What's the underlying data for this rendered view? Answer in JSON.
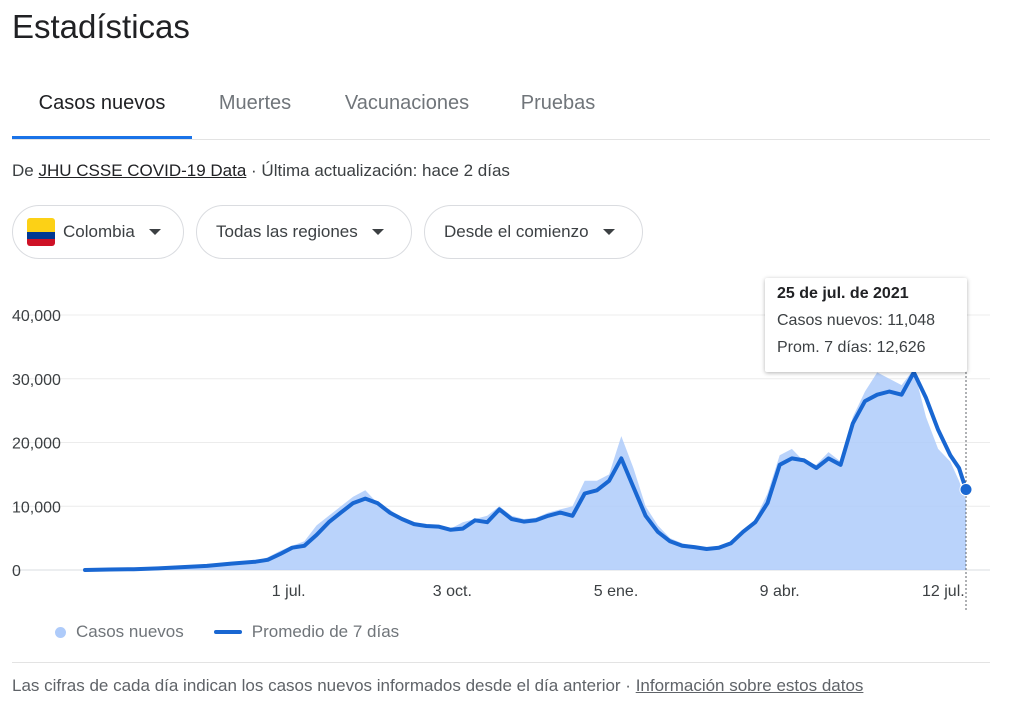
{
  "header": {
    "title": "Estadísticas"
  },
  "tabs": [
    {
      "label": "Casos nuevos",
      "active": true
    },
    {
      "label": "Muertes",
      "active": false
    },
    {
      "label": "Vacunaciones",
      "active": false
    },
    {
      "label": "Pruebas",
      "active": false
    }
  ],
  "source": {
    "prefix": "De ",
    "link": "JHU CSSE COVID-19 Data",
    "suffix": " · Última actualización: hace 2 días"
  },
  "filters": {
    "country": "Colombia",
    "region": "Todas las regiones",
    "period": "Desde el comienzo"
  },
  "tooltip": {
    "date": "25 de jul. de 2021",
    "cases": "Casos nuevos: 11,048",
    "avg": "Prom. 7 días: 12,626"
  },
  "legend": {
    "daily": "Casos nuevos",
    "avg": "Promedio de 7 días"
  },
  "footer": {
    "text": "Las cifras de cada día indican los casos nuevos informados desde el día anterior  ·  ",
    "link": "Información sobre estos datos"
  },
  "colors": {
    "accent": "#1a73e8",
    "area": "#aecbfa",
    "line": "#1967d2"
  },
  "chart_data": {
    "type": "area",
    "xlim": [
      "2020-03-06",
      "2021-07-25"
    ],
    "ylim": [
      0,
      40000
    ],
    "yticks": [
      0,
      10000,
      20000,
      30000,
      40000
    ],
    "ytick_labels": [
      "0",
      "10,000",
      "20,000",
      "30,000",
      "40,000"
    ],
    "xticks": [
      "2020-07-01",
      "2020-10-03",
      "2021-01-05",
      "2021-04-09",
      "2021-07-12"
    ],
    "xtick_labels": [
      "1 jul.",
      "3 oct.",
      "5 ene.",
      "9 abr.",
      "12 jul."
    ],
    "grid": true,
    "legend_position": "bottom-left",
    "series": [
      {
        "name": "Casos nuevos",
        "style": "area",
        "x": [
          "2020-03-06",
          "2020-03-20",
          "2020-04-03",
          "2020-04-17",
          "2020-05-01",
          "2020-05-15",
          "2020-05-29",
          "2020-06-12",
          "2020-06-19",
          "2020-06-26",
          "2020-07-03",
          "2020-07-10",
          "2020-07-17",
          "2020-07-24",
          "2020-07-31",
          "2020-08-07",
          "2020-08-14",
          "2020-08-21",
          "2020-08-28",
          "2020-09-04",
          "2020-09-11",
          "2020-09-18",
          "2020-09-25",
          "2020-10-02",
          "2020-10-09",
          "2020-10-16",
          "2020-10-23",
          "2020-10-30",
          "2020-11-06",
          "2020-11-13",
          "2020-11-20",
          "2020-11-27",
          "2020-12-04",
          "2020-12-11",
          "2020-12-18",
          "2020-12-25",
          "2021-01-01",
          "2021-01-08",
          "2021-01-15",
          "2021-01-22",
          "2021-01-29",
          "2021-02-05",
          "2021-02-12",
          "2021-02-19",
          "2021-02-26",
          "2021-03-05",
          "2021-03-12",
          "2021-03-19",
          "2021-03-26",
          "2021-04-02",
          "2021-04-09",
          "2021-04-16",
          "2021-04-23",
          "2021-04-30",
          "2021-05-07",
          "2021-05-14",
          "2021-05-21",
          "2021-05-28",
          "2021-06-04",
          "2021-06-11",
          "2021-06-18",
          "2021-06-25",
          "2021-07-02",
          "2021-07-09",
          "2021-07-16",
          "2021-07-21",
          "2021-07-25"
        ],
        "values": [
          0,
          100,
          150,
          300,
          500,
          700,
          1100,
          1400,
          2000,
          3000,
          3800,
          4500,
          7000,
          8500,
          10000,
          11500,
          12500,
          10500,
          9500,
          8000,
          7500,
          7000,
          6800,
          6500,
          7500,
          8000,
          8500,
          10000,
          8500,
          8000,
          8200,
          9000,
          9500,
          10000,
          14000,
          14000,
          15000,
          21000,
          16000,
          10000,
          7000,
          5000,
          4200,
          3800,
          3500,
          3500,
          4500,
          6000,
          8000,
          12000,
          18000,
          19000,
          17000,
          16500,
          18500,
          17000,
          24000,
          28000,
          31000,
          30000,
          29000,
          31500,
          24000,
          19000,
          17000,
          14000,
          11048
        ]
      },
      {
        "name": "Promedio de 7 días",
        "style": "line",
        "x": [
          "2020-03-06",
          "2020-03-20",
          "2020-04-03",
          "2020-04-17",
          "2020-05-01",
          "2020-05-15",
          "2020-05-29",
          "2020-06-12",
          "2020-06-19",
          "2020-06-26",
          "2020-07-03",
          "2020-07-10",
          "2020-07-17",
          "2020-07-24",
          "2020-07-31",
          "2020-08-07",
          "2020-08-14",
          "2020-08-21",
          "2020-08-28",
          "2020-09-04",
          "2020-09-11",
          "2020-09-18",
          "2020-09-25",
          "2020-10-02",
          "2020-10-09",
          "2020-10-16",
          "2020-10-23",
          "2020-10-30",
          "2020-11-06",
          "2020-11-13",
          "2020-11-20",
          "2020-11-27",
          "2020-12-04",
          "2020-12-11",
          "2020-12-18",
          "2020-12-25",
          "2021-01-01",
          "2021-01-08",
          "2021-01-15",
          "2021-01-22",
          "2021-01-29",
          "2021-02-05",
          "2021-02-12",
          "2021-02-19",
          "2021-02-26",
          "2021-03-05",
          "2021-03-12",
          "2021-03-19",
          "2021-03-26",
          "2021-04-02",
          "2021-04-09",
          "2021-04-16",
          "2021-04-23",
          "2021-04-30",
          "2021-05-07",
          "2021-05-14",
          "2021-05-21",
          "2021-05-28",
          "2021-06-04",
          "2021-06-11",
          "2021-06-18",
          "2021-06-25",
          "2021-07-02",
          "2021-07-09",
          "2021-07-16",
          "2021-07-21",
          "2021-07-25"
        ],
        "values": [
          0,
          80,
          120,
          250,
          450,
          650,
          1000,
          1300,
          1600,
          2500,
          3500,
          3800,
          5500,
          7500,
          9000,
          10500,
          11200,
          10500,
          9000,
          8000,
          7200,
          6900,
          6800,
          6300,
          6500,
          7800,
          7500,
          9500,
          8000,
          7600,
          7800,
          8500,
          9000,
          8500,
          12000,
          12500,
          14000,
          17500,
          13000,
          8500,
          6000,
          4500,
          3800,
          3600,
          3300,
          3500,
          4200,
          6000,
          7500,
          10500,
          16500,
          17500,
          17200,
          16000,
          17500,
          16500,
          23000,
          26500,
          27500,
          28000,
          27500,
          31000,
          27000,
          22000,
          18000,
          16000,
          12626
        ]
      }
    ]
  }
}
